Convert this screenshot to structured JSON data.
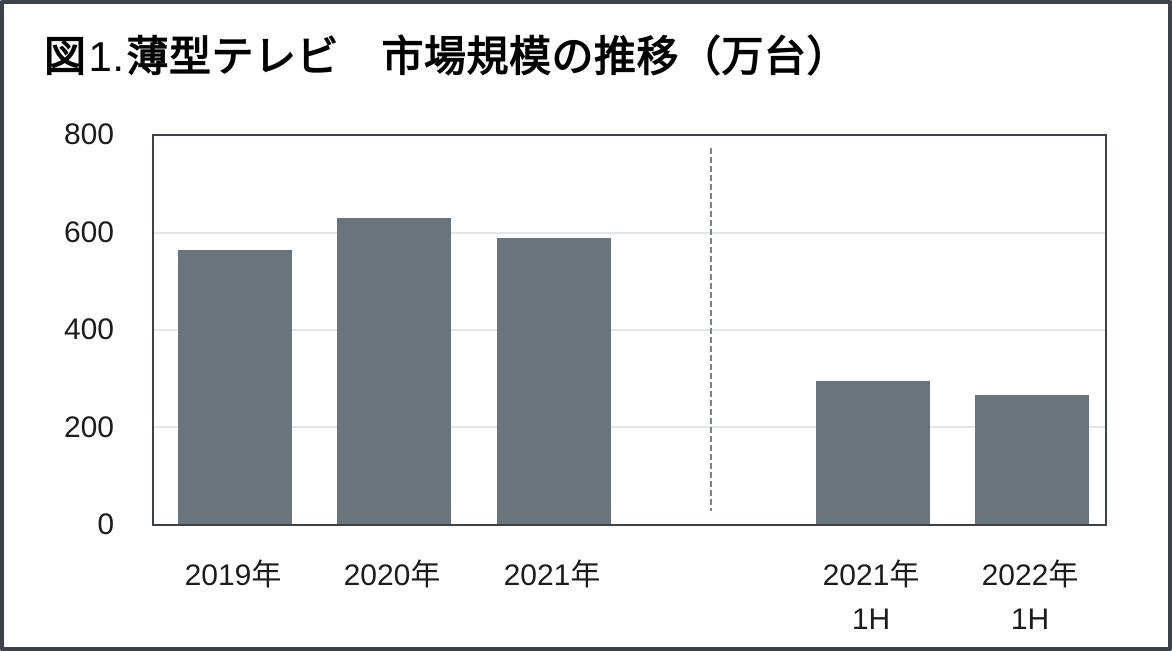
{
  "title": {
    "figure_label": "図",
    "figure_number": "1.",
    "text": "薄型テレビ　市場規模の推移（万台）"
  },
  "chart_data": {
    "type": "bar",
    "title": "図1. 薄型テレビ　市場規模の推移（万台）",
    "categories": [
      "2019年",
      "2020年",
      "2021年",
      "2021年 1H",
      "2022年 1H"
    ],
    "category_lines": [
      [
        "2019年"
      ],
      [
        "2020年"
      ],
      [
        "2021年"
      ],
      [
        "2021年",
        "1H"
      ],
      [
        "2022年",
        "1H"
      ]
    ],
    "values": [
      565,
      630,
      590,
      295,
      265
    ],
    "unit": "万台",
    "xlabel": "",
    "ylabel": "",
    "ylim": [
      0,
      800
    ],
    "yticks": [
      0,
      200,
      400,
      600,
      800
    ],
    "grid": "horizontal",
    "legend": "none",
    "bar_color": "#69747d",
    "divider": {
      "style": "dashed",
      "between": [
        "2021年",
        "2021年 1H"
      ],
      "color": "#7f8489"
    }
  },
  "colors": {
    "outer_border": "#3b4249",
    "plot_border": "#3b4249",
    "gridline": "#e2e7e9",
    "bar": "#69747d",
    "divider": "#7f8489",
    "text": "#1c1c1c",
    "background": "#ffffff"
  }
}
